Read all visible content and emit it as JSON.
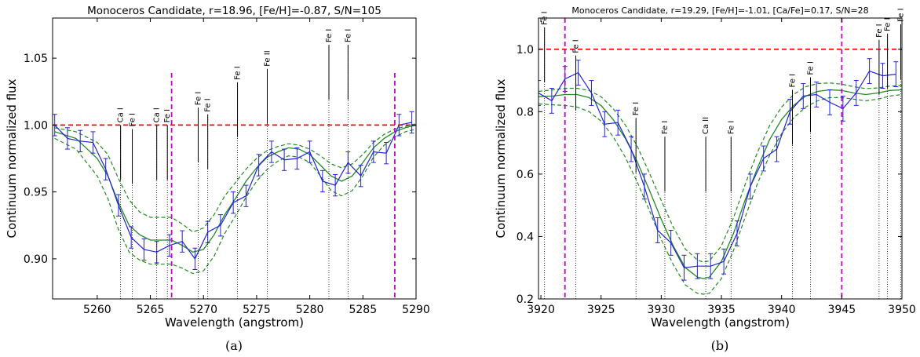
{
  "chart_data": [
    {
      "type": "line",
      "title": "Monoceros Candidate, r=18.96, [Fe/H]=-0.87, S/N=105",
      "xlabel": "Wavelength (angstrom)",
      "ylabel": "Continuum normalized flux",
      "caption": "(a)",
      "xlim": [
        5255.8,
        5290
      ],
      "ylim": [
        0.87,
        1.08
      ],
      "xticks": [
        5260,
        5265,
        5270,
        5275,
        5280,
        5285,
        5290
      ],
      "yticks": [
        0.9,
        0.95,
        1.0,
        1.05
      ],
      "ytick_labels": [
        "0.90",
        "0.95",
        "1.00",
        "1.05"
      ],
      "grid": false,
      "continuum": 1.0,
      "window": [
        5267,
        5288
      ],
      "colors": {
        "data": "#2222dd",
        "model": "#228b22",
        "continuum": "#ff0000",
        "window": "#cc00cc"
      },
      "series": [
        {
          "kind": "observed",
          "x": [
            5256,
            5257.2,
            5258.4,
            5259.6,
            5260.8,
            5262,
            5263.2,
            5264.4,
            5265.6,
            5266.8,
            5268,
            5269.2,
            5270.4,
            5271.6,
            5272.8,
            5274,
            5275.2,
            5276.4,
            5277.6,
            5278.8,
            5280,
            5281.2,
            5282.4,
            5283.6,
            5284.8,
            5286,
            5287.2,
            5288.4,
            5289.6
          ],
          "y": [
            1.0,
            0.99,
            0.988,
            0.987,
            0.967,
            0.94,
            0.916,
            0.907,
            0.905,
            0.91,
            0.913,
            0.9,
            0.92,
            0.925,
            0.942,
            0.947,
            0.97,
            0.98,
            0.974,
            0.975,
            0.98,
            0.958,
            0.955,
            0.972,
            0.962,
            0.98,
            0.979,
            1.0,
            1.002
          ],
          "yerr": [
            0.008,
            0.008,
            0.008,
            0.008,
            0.008,
            0.008,
            0.008,
            0.008,
            0.008,
            0.008,
            0.008,
            0.008,
            0.008,
            0.008,
            0.008,
            0.008,
            0.008,
            0.008,
            0.008,
            0.008,
            0.008,
            0.008,
            0.008,
            0.008,
            0.008,
            0.008,
            0.008,
            0.008,
            0.008
          ]
        },
        {
          "kind": "model",
          "x": [
            5256,
            5258,
            5260,
            5261,
            5262,
            5263,
            5264,
            5265,
            5266,
            5267,
            5268,
            5269,
            5270,
            5271,
            5272,
            5273,
            5274,
            5275,
            5276,
            5277,
            5278,
            5279,
            5280,
            5281,
            5282,
            5283,
            5284,
            5285,
            5286,
            5287,
            5288,
            5289,
            5290
          ],
          "y": [
            0.995,
            0.99,
            0.975,
            0.962,
            0.942,
            0.925,
            0.918,
            0.914,
            0.914,
            0.914,
            0.91,
            0.905,
            0.907,
            0.918,
            0.933,
            0.945,
            0.958,
            0.968,
            0.976,
            0.98,
            0.983,
            0.982,
            0.978,
            0.97,
            0.962,
            0.958,
            0.962,
            0.972,
            0.983,
            0.99,
            0.995,
            0.998,
            1.0
          ]
        },
        {
          "kind": "model_upper",
          "x": [
            5256,
            5258,
            5260,
            5261,
            5262,
            5263,
            5264,
            5265,
            5266,
            5267,
            5268,
            5269,
            5270,
            5271,
            5272,
            5273,
            5274,
            5275,
            5276,
            5277,
            5278,
            5279,
            5280,
            5281,
            5282,
            5283,
            5284,
            5285,
            5286,
            5287,
            5288,
            5289,
            5290
          ],
          "y": [
            0.998,
            0.995,
            0.987,
            0.978,
            0.96,
            0.944,
            0.935,
            0.931,
            0.931,
            0.931,
            0.926,
            0.92,
            0.923,
            0.933,
            0.947,
            0.957,
            0.967,
            0.975,
            0.981,
            0.984,
            0.986,
            0.985,
            0.982,
            0.977,
            0.971,
            0.968,
            0.971,
            0.978,
            0.987,
            0.993,
            0.997,
            0.999,
            1.001
          ]
        },
        {
          "kind": "model_lower",
          "x": [
            5256,
            5258,
            5260,
            5261,
            5262,
            5263,
            5264,
            5265,
            5266,
            5267,
            5268,
            5269,
            5270,
            5271,
            5272,
            5273,
            5274,
            5275,
            5276,
            5277,
            5278,
            5279,
            5280,
            5281,
            5282,
            5283,
            5284,
            5285,
            5286,
            5287,
            5288,
            5289,
            5290
          ],
          "y": [
            0.99,
            0.982,
            0.962,
            0.945,
            0.922,
            0.905,
            0.899,
            0.896,
            0.896,
            0.896,
            0.893,
            0.889,
            0.891,
            0.902,
            0.919,
            0.932,
            0.946,
            0.958,
            0.967,
            0.973,
            0.977,
            0.976,
            0.972,
            0.962,
            0.951,
            0.947,
            0.951,
            0.962,
            0.976,
            0.985,
            0.991,
            0.995,
            0.997
          ]
        }
      ],
      "lines": [
        {
          "label": "Ca I",
          "x": 5262.2,
          "top": 1.0
        },
        {
          "label": "Fe I",
          "x": 5263.3,
          "top": 0.997
        },
        {
          "label": "Ca I",
          "x": 5265.6,
          "top": 1.0
        },
        {
          "label": "Fe I",
          "x": 5266.6,
          "top": 1.0
        },
        {
          "label": "Fe I",
          "x": 5269.5,
          "top": 1.013
        },
        {
          "label": "Fe I",
          "x": 5270.4,
          "top": 1.008
        },
        {
          "label": "Fe I",
          "x": 5273.2,
          "top": 1.032
        },
        {
          "label": "Fe II",
          "x": 5276.0,
          "top": 1.042
        },
        {
          "label": "Fe I",
          "x": 5281.8,
          "top": 1.06
        },
        {
          "label": "Fe I",
          "x": 5283.6,
          "top": 1.06
        }
      ]
    },
    {
      "type": "line",
      "title": "Monoceros Candidate, r=19.29, [Fe/H]=-1.01, [Ca/Fe]=0.17, S/N=28",
      "xlabel": "Wavelength (angstrom)",
      "ylabel": "Continuum normalized flux",
      "caption": "(b)",
      "xlim": [
        3919.8,
        3950
      ],
      "ylim": [
        0.2,
        1.1
      ],
      "xticks": [
        3920,
        3925,
        3930,
        3935,
        3940,
        3945,
        3950
      ],
      "yticks": [
        0.2,
        0.4,
        0.6,
        0.8,
        1.0
      ],
      "ytick_labels": [
        "0.2",
        "0.4",
        "0.6",
        "0.8",
        "1.0"
      ],
      "grid": false,
      "continuum": 1.0,
      "window": [
        3922,
        3945
      ],
      "colors": {
        "data": "#2222dd",
        "model": "#228b22",
        "continuum": "#ff0000",
        "window": "#cc00cc"
      },
      "series": [
        {
          "kind": "observed",
          "x": [
            3919.8,
            3920.9,
            3922.0,
            3923.1,
            3924.2,
            3925.3,
            3926.4,
            3927.5,
            3928.6,
            3929.7,
            3930.8,
            3931.9,
            3933.0,
            3934.1,
            3935.2,
            3936.3,
            3937.4,
            3938.5,
            3939.6,
            3940.7,
            3941.8,
            3942.9,
            3944.0,
            3945.1,
            3946.2,
            3947.3,
            3948.4,
            3949.5
          ],
          "y": [
            0.86,
            0.835,
            0.905,
            0.925,
            0.86,
            0.76,
            0.765,
            0.68,
            0.56,
            0.42,
            0.38,
            0.3,
            0.305,
            0.305,
            0.32,
            0.41,
            0.56,
            0.65,
            0.68,
            0.8,
            0.85,
            0.855,
            0.83,
            0.81,
            0.86,
            0.93,
            0.915,
            0.92
          ],
          "yerr": [
            0.04,
            0.04,
            0.04,
            0.04,
            0.04,
            0.04,
            0.04,
            0.04,
            0.04,
            0.04,
            0.04,
            0.04,
            0.04,
            0.04,
            0.04,
            0.04,
            0.04,
            0.04,
            0.04,
            0.04,
            0.04,
            0.04,
            0.04,
            0.04,
            0.04,
            0.04,
            0.04,
            0.04
          ]
        },
        {
          "kind": "model",
          "x": [
            3919.8,
            3921,
            3922,
            3923,
            3924,
            3925,
            3926,
            3927,
            3928,
            3929,
            3930,
            3931,
            3932,
            3933,
            3933.5,
            3934,
            3935,
            3936,
            3937,
            3938,
            3939,
            3940,
            3941,
            3942,
            3943,
            3944,
            3945,
            3946,
            3947,
            3948,
            3949,
            3950
          ],
          "y": [
            0.848,
            0.85,
            0.855,
            0.855,
            0.845,
            0.82,
            0.775,
            0.715,
            0.64,
            0.55,
            0.455,
            0.37,
            0.3,
            0.27,
            0.265,
            0.27,
            0.32,
            0.41,
            0.52,
            0.62,
            0.71,
            0.775,
            0.82,
            0.85,
            0.865,
            0.87,
            0.868,
            0.86,
            0.855,
            0.86,
            0.868,
            0.87
          ]
        },
        {
          "kind": "model_upper",
          "x": [
            3919.8,
            3921,
            3922,
            3923,
            3924,
            3925,
            3926,
            3927,
            3928,
            3929,
            3930,
            3931,
            3932,
            3933,
            3933.5,
            3934,
            3935,
            3936,
            3937,
            3938,
            3939,
            3940,
            3941,
            3942,
            3943,
            3944,
            3945,
            3946,
            3947,
            3948,
            3949,
            3950
          ],
          "y": [
            0.865,
            0.87,
            0.875,
            0.875,
            0.868,
            0.848,
            0.81,
            0.758,
            0.69,
            0.605,
            0.515,
            0.43,
            0.36,
            0.325,
            0.318,
            0.322,
            0.37,
            0.46,
            0.57,
            0.67,
            0.755,
            0.815,
            0.855,
            0.88,
            0.89,
            0.892,
            0.888,
            0.88,
            0.874,
            0.876,
            0.882,
            0.884
          ]
        },
        {
          "kind": "model_lower",
          "x": [
            3919.8,
            3921,
            3922,
            3923,
            3924,
            3925,
            3926,
            3927,
            3928,
            3929,
            3930,
            3931,
            3932,
            3933,
            3933.5,
            3934,
            3935,
            3936,
            3937,
            3938,
            3939,
            3940,
            3941,
            3942,
            3943,
            3944,
            3945,
            3946,
            3947,
            3948,
            3949,
            3950
          ],
          "y": [
            0.825,
            0.822,
            0.82,
            0.815,
            0.8,
            0.77,
            0.72,
            0.655,
            0.575,
            0.485,
            0.39,
            0.31,
            0.245,
            0.218,
            0.215,
            0.218,
            0.265,
            0.355,
            0.465,
            0.57,
            0.66,
            0.73,
            0.78,
            0.815,
            0.835,
            0.845,
            0.845,
            0.84,
            0.835,
            0.84,
            0.85,
            0.855
          ]
        }
      ],
      "lines": [
        {
          "label": "Fe I",
          "x": 3920.3,
          "top": 1.07
        },
        {
          "label": "Fe I",
          "x": 3922.9,
          "top": 0.98
        },
        {
          "label": "Fe I",
          "x": 3927.9,
          "top": 0.78
        },
        {
          "label": "Fe I",
          "x": 3930.3,
          "top": 0.72
        },
        {
          "label": "Ca II",
          "x": 3933.7,
          "top": 0.72
        },
        {
          "label": "Fe I",
          "x": 3935.8,
          "top": 0.72
        },
        {
          "label": "Fe I",
          "x": 3940.9,
          "top": 0.87
        },
        {
          "label": "Fe I",
          "x": 3942.4,
          "top": 0.91
        },
        {
          "label": "Fe I",
          "x": 3948.1,
          "top": 1.03
        },
        {
          "label": "Fe I",
          "x": 3948.8,
          "top": 1.05
        },
        {
          "label": "Fe I",
          "x": 3949.9,
          "top": 1.08
        }
      ]
    }
  ]
}
